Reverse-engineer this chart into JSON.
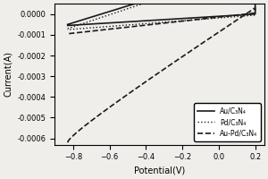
{
  "title": "",
  "xlabel": "Potential(V)",
  "ylabel": "Current(A)",
  "xlim": [
    -0.9,
    0.25
  ],
  "ylim": [
    -0.00063,
    5e-05
  ],
  "xticks": [
    -0.8,
    -0.6,
    -0.4,
    -0.2,
    0.0,
    0.2
  ],
  "yticks": [
    0.0,
    -0.0001,
    -0.0002,
    -0.0003,
    -0.0004,
    -0.0005,
    -0.0006
  ],
  "legend_labels": [
    "Au/C₃N₄",
    "Pd/C₃N₄",
    "Au-Pd/C₃N₄"
  ],
  "legend_styles": [
    "solid",
    "dotted",
    "dashed"
  ],
  "background_color": "#f0eeeb",
  "line_color": "#1a1a1a"
}
